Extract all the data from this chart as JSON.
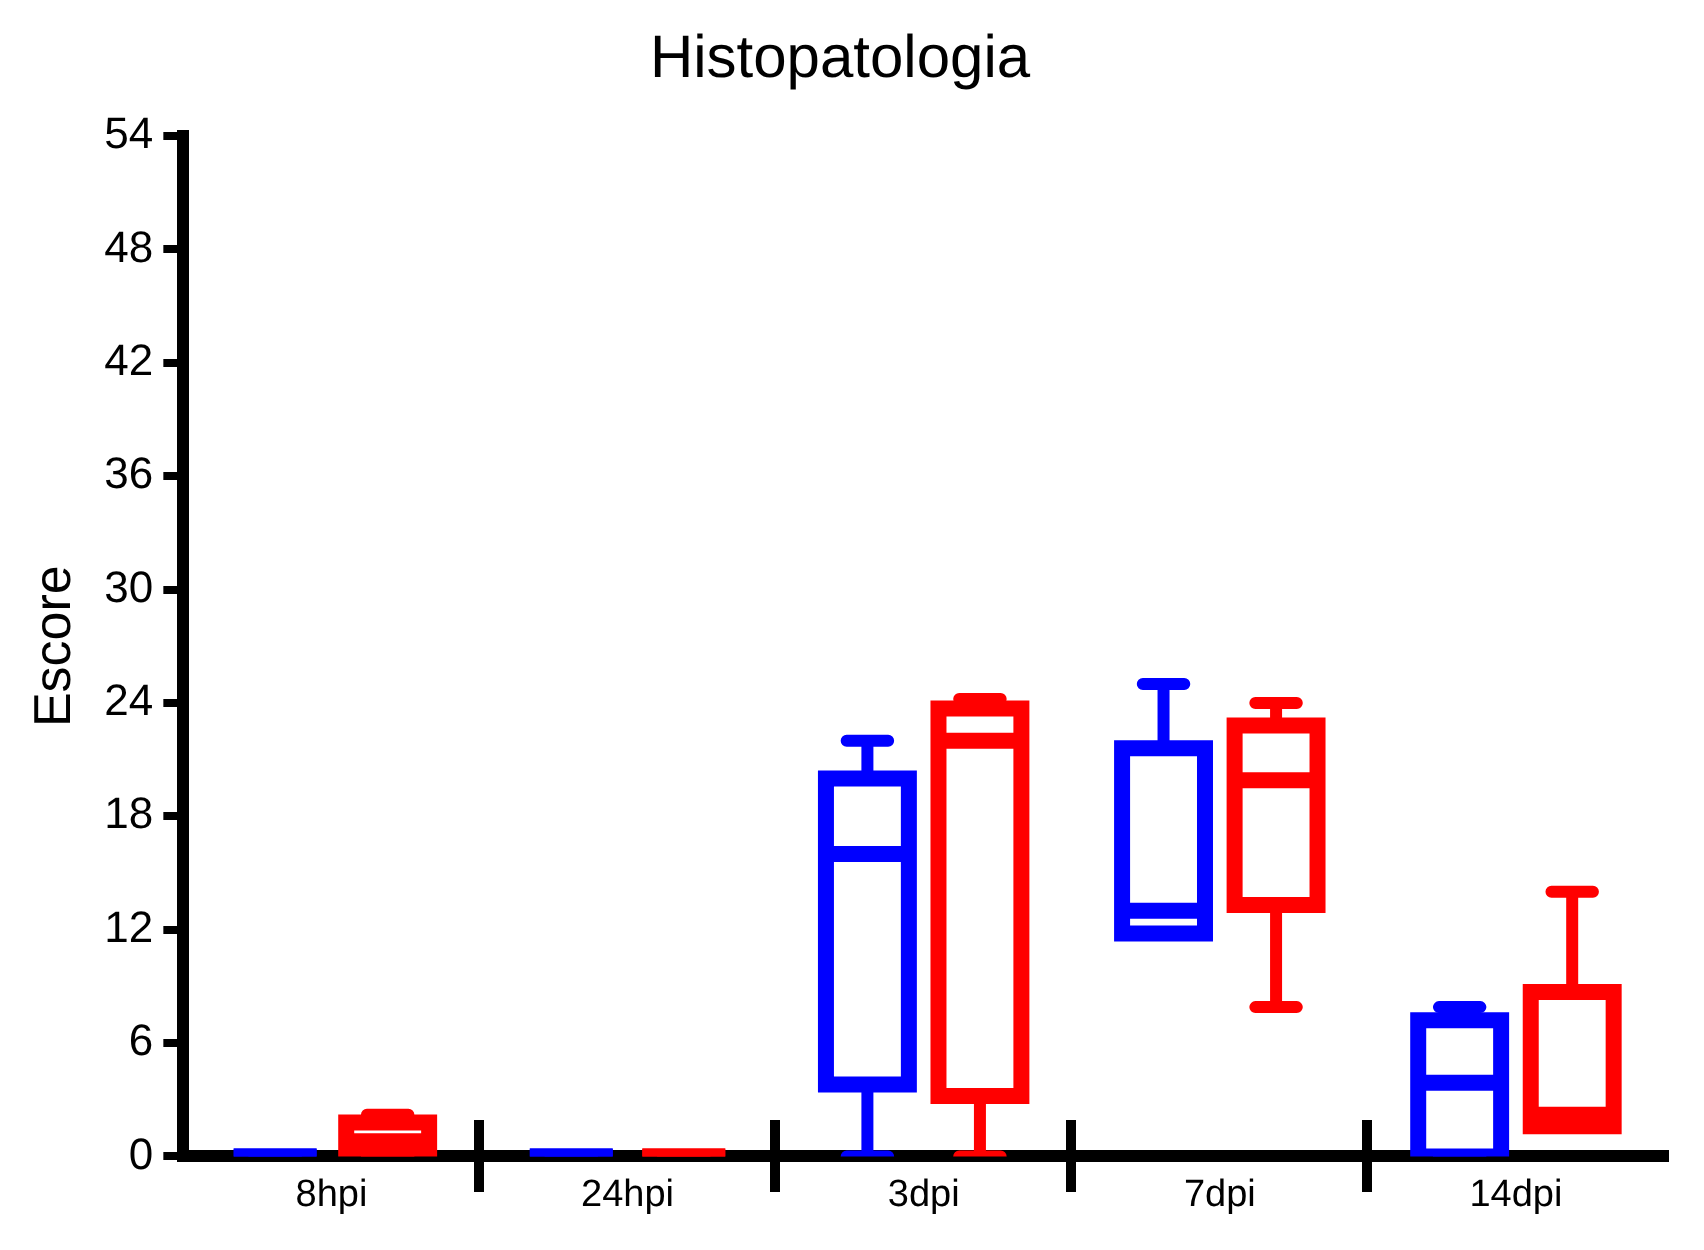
{
  "chart_data": {
    "type": "box",
    "title": "Histopatologia",
    "ylabel": "Escore",
    "categories": [
      "8hpi",
      "24hpi",
      "3dpi",
      "7dpi",
      "14dpi"
    ],
    "ylim": [
      0,
      54
    ],
    "yticks": [
      0,
      6,
      12,
      18,
      24,
      30,
      36,
      42,
      48,
      54
    ],
    "grid": false,
    "legend": false,
    "series": [
      {
        "color": "#0000ff",
        "boxes": [
          {
            "low": 0,
            "q1": 0,
            "median": 0,
            "q3": 0,
            "high": 0
          },
          {
            "low": 0,
            "q1": 0,
            "median": 0,
            "q3": 0,
            "high": 0
          },
          {
            "low": 0,
            "q1": 3.8,
            "median": 16,
            "q3": 20,
            "high": 22
          },
          {
            "low": 11.8,
            "q1": 11.8,
            "median": 13,
            "q3": 21.6,
            "high": 25
          },
          {
            "low": 0,
            "q1": 0,
            "median": 3.9,
            "q3": 7.2,
            "high": 7.9
          }
        ]
      },
      {
        "color": "#ff0000",
        "boxes": [
          {
            "low": 0,
            "q1": 0,
            "median": 0.8,
            "q3": 1.8,
            "high": 2.2
          },
          {
            "low": 0,
            "q1": 0,
            "median": 0,
            "q3": 0,
            "high": 0
          },
          {
            "low": 0,
            "q1": 3.2,
            "median": 22,
            "q3": 23.7,
            "high": 24.2
          },
          {
            "low": 7.9,
            "q1": 13.3,
            "median": 19.9,
            "q3": 22.8,
            "high": 24
          },
          {
            "low": 1.6,
            "q1": 1.6,
            "median": 2.2,
            "q3": 8.7,
            "high": 14
          }
        ]
      }
    ]
  }
}
